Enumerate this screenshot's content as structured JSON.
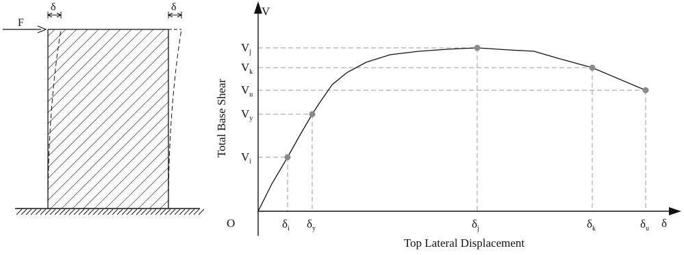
{
  "wall": {
    "force_label": "F",
    "delta_left": "δ",
    "delta_right": "δ"
  },
  "chart_data": {
    "type": "line",
    "title": "",
    "xlabel": "Top Lateral Displacement",
    "ylabel": "Total Base Shear",
    "x_axis_symbol": "δ",
    "y_axis_symbol": "V",
    "origin_label": "O",
    "xlim": [
      0,
      620
    ],
    "ylim": [
      0,
      280
    ],
    "curve": [
      [
        0,
        0
      ],
      [
        20,
        40
      ],
      [
        43,
        79
      ],
      [
        62,
        113
      ],
      [
        79,
        142
      ],
      [
        90,
        159
      ],
      [
        108,
        185
      ],
      [
        130,
        203
      ],
      [
        158,
        218
      ],
      [
        193,
        229
      ],
      [
        235,
        234
      ],
      [
        277,
        237
      ],
      [
        320,
        239
      ],
      [
        366,
        236
      ],
      [
        403,
        234
      ],
      [
        437,
        224
      ],
      [
        488,
        210
      ],
      [
        566,
        177
      ]
    ],
    "points": [
      {
        "name": "i",
        "x": 43,
        "y": 79,
        "x_label": "δ",
        "x_sub": "i",
        "y_label": "V",
        "y_sub": "i"
      },
      {
        "name": "y",
        "x": 79,
        "y": 142,
        "x_label": "δ",
        "x_sub": "y",
        "y_label": "V",
        "y_sub": "y"
      },
      {
        "name": "j",
        "x": 320,
        "y": 239,
        "x_label": "δ",
        "x_sub": "j",
        "y_label": "V",
        "y_sub": "j"
      },
      {
        "name": "k",
        "x": 488,
        "y": 210,
        "x_label": "δ",
        "x_sub": "k",
        "y_label": "V",
        "y_sub": "k"
      },
      {
        "name": "u",
        "x": 566,
        "y": 177,
        "x_label": "δ",
        "x_sub": "u",
        "y_label": "V",
        "y_sub": "u"
      }
    ],
    "grid": false,
    "guide_lines": "dashed"
  },
  "colors": {
    "line": "#111111",
    "guide": "#9a9a9a",
    "marker": "#8a8a8a",
    "hatch": "#555555"
  }
}
